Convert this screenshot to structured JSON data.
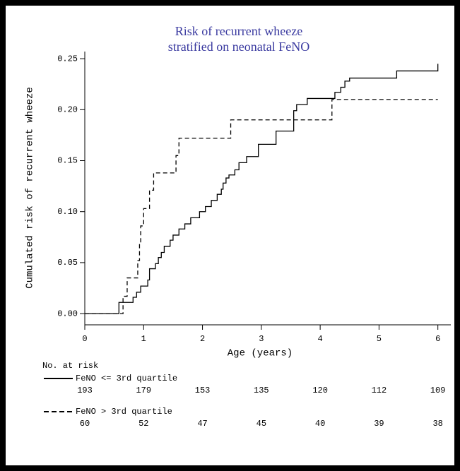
{
  "chart_data": {
    "type": "step",
    "title": [
      "Risk of recurrent wheeze",
      "stratified on neonatal FeNO"
    ],
    "title_color": "#3a3aa0",
    "x_label": "Age (years)",
    "y_label": "Cumulated risk of recurrent wheeze",
    "xlim": [
      0,
      6.22
    ],
    "xticks": [
      0,
      1,
      2,
      3,
      4,
      5,
      6
    ],
    "ylim": [
      -0.011,
      0.257
    ],
    "yticks": [
      {
        "value": 0,
        "label": "0.00"
      },
      {
        "value": 0.05,
        "label": "0.05"
      },
      {
        "value": 0.1,
        "label": "0.10"
      },
      {
        "value": 0.15,
        "label": "0.15"
      },
      {
        "value": 0.2,
        "label": "0.20"
      },
      {
        "value": 0.25,
        "label": "0.25"
      }
    ],
    "risk_table_title": "No. at risk",
    "series": [
      {
        "name": "FeNO <= 3rd quartile",
        "color": "#000000",
        "dash": false,
        "x": [
          0,
          0.58,
          0.82,
          0.88,
          0.95,
          1.07,
          1.1,
          1.2,
          1.25,
          1.3,
          1.35,
          1.45,
          1.5,
          1.6,
          1.7,
          1.8,
          1.95,
          2.05,
          2.15,
          2.25,
          2.32,
          2.35,
          2.4,
          2.45,
          2.55,
          2.62,
          2.75,
          2.95,
          3.25,
          3.55,
          3.6,
          3.78,
          4.25,
          4.35,
          4.42,
          4.5,
          5.3,
          6.0
        ],
        "values": [
          0,
          0.011,
          0.016,
          0.021,
          0.027,
          0.033,
          0.044,
          0.049,
          0.055,
          0.06,
          0.066,
          0.072,
          0.077,
          0.083,
          0.088,
          0.094,
          0.1,
          0.105,
          0.111,
          0.117,
          0.122,
          0.128,
          0.133,
          0.136,
          0.141,
          0.148,
          0.154,
          0.166,
          0.179,
          0.199,
          0.205,
          0.211,
          0.217,
          0.222,
          0.228,
          0.231,
          0.238,
          0.245
        ],
        "at_risk": [
          193,
          179,
          153,
          135,
          120,
          112,
          109
        ]
      },
      {
        "name": "FeNO > 3rd quartile",
        "color": "#000000",
        "dash": true,
        "x": [
          0,
          0.65,
          0.72,
          0.9,
          0.93,
          0.95,
          1.0,
          1.1,
          1.17,
          1.55,
          1.6,
          2.48,
          4.2,
          6.0
        ],
        "values": [
          0,
          0.017,
          0.035,
          0.052,
          0.069,
          0.086,
          0.103,
          0.121,
          0.138,
          0.155,
          0.172,
          0.19,
          0.21,
          0.21
        ],
        "at_risk": [
          60,
          52,
          47,
          45,
          40,
          39,
          38
        ]
      }
    ]
  }
}
